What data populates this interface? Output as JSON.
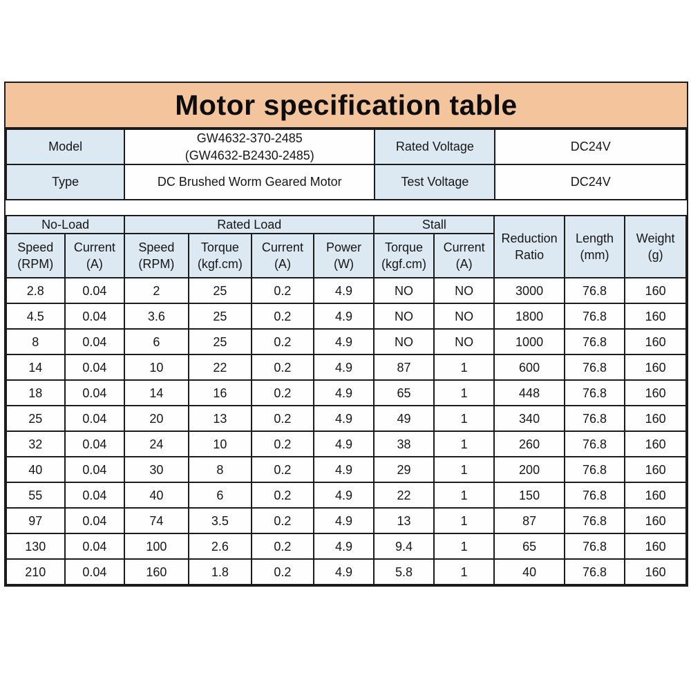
{
  "colors": {
    "banner_bg": "#f4c49c",
    "header_bg": "#dce8f2",
    "border": "#1b1b1b",
    "page_bg": "#ffffff"
  },
  "banner": {
    "title": "Motor specification table"
  },
  "info": {
    "model_label": "Model",
    "model_value_line1": "GW4632-370-2485",
    "model_value_line2": "(GW4632-B2430-2485)",
    "rated_voltage_label": "Rated Voltage",
    "rated_voltage_value": "DC24V",
    "type_label": "Type",
    "type_value": "DC Brushed Worm Geared Motor",
    "test_voltage_label": "Test Voltage",
    "test_voltage_value": "DC24V"
  },
  "spec": {
    "groups": [
      {
        "label": "No-Load",
        "colspan": 2
      },
      {
        "label": "Rated Load",
        "colspan": 4
      },
      {
        "label": "Stall",
        "colspan": 2
      }
    ],
    "subheaders": [
      {
        "line1": "Speed",
        "line2": "(RPM)"
      },
      {
        "line1": "Current",
        "line2": "(A)"
      },
      {
        "line1": "Speed",
        "line2": "(RPM)"
      },
      {
        "line1": "Torque",
        "line2": "(kgf.cm)"
      },
      {
        "line1": "Current",
        "line2": "(A)"
      },
      {
        "line1": "Power",
        "line2": "(W)"
      },
      {
        "line1": "Torque",
        "line2": "(kgf.cm)"
      },
      {
        "line1": "Current",
        "line2": "(A)"
      }
    ],
    "rowspan_headers": [
      {
        "line1": "Reduction",
        "line2": "Ratio"
      },
      {
        "line1": "Length",
        "line2": "(mm)"
      },
      {
        "line1": "Weight",
        "line2": "(g)"
      }
    ],
    "rows": [
      [
        "2.8",
        "0.04",
        "2",
        "25",
        "0.2",
        "4.9",
        "NO",
        "NO",
        "3000",
        "76.8",
        "160"
      ],
      [
        "4.5",
        "0.04",
        "3.6",
        "25",
        "0.2",
        "4.9",
        "NO",
        "NO",
        "1800",
        "76.8",
        "160"
      ],
      [
        "8",
        "0.04",
        "6",
        "25",
        "0.2",
        "4.9",
        "NO",
        "NO",
        "1000",
        "76.8",
        "160"
      ],
      [
        "14",
        "0.04",
        "10",
        "22",
        "0.2",
        "4.9",
        "87",
        "1",
        "600",
        "76.8",
        "160"
      ],
      [
        "18",
        "0.04",
        "14",
        "16",
        "0.2",
        "4.9",
        "65",
        "1",
        "448",
        "76.8",
        "160"
      ],
      [
        "25",
        "0.04",
        "20",
        "13",
        "0.2",
        "4.9",
        "49",
        "1",
        "340",
        "76.8",
        "160"
      ],
      [
        "32",
        "0.04",
        "24",
        "10",
        "0.2",
        "4.9",
        "38",
        "1",
        "260",
        "76.8",
        "160"
      ],
      [
        "40",
        "0.04",
        "30",
        "8",
        "0.2",
        "4.9",
        "29",
        "1",
        "200",
        "76.8",
        "160"
      ],
      [
        "55",
        "0.04",
        "40",
        "6",
        "0.2",
        "4.9",
        "22",
        "1",
        "150",
        "76.8",
        "160"
      ],
      [
        "97",
        "0.04",
        "74",
        "3.5",
        "0.2",
        "4.9",
        "13",
        "1",
        "87",
        "76.8",
        "160"
      ],
      [
        "130",
        "0.04",
        "100",
        "2.6",
        "0.2",
        "4.9",
        "9.4",
        "1",
        "65",
        "76.8",
        "160"
      ],
      [
        "210",
        "0.04",
        "160",
        "1.8",
        "0.2",
        "4.9",
        "5.8",
        "1",
        "40",
        "76.8",
        "160"
      ]
    ]
  }
}
